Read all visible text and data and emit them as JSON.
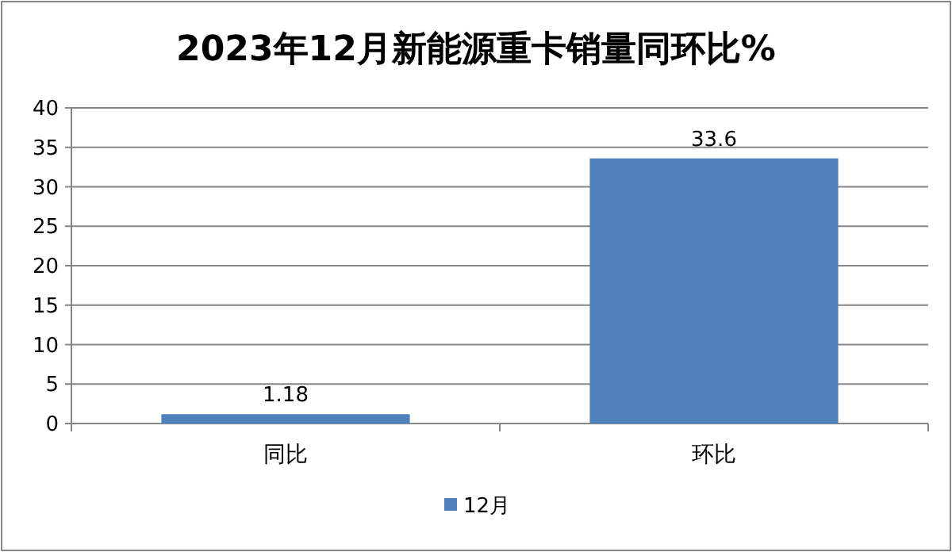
{
  "chart_data": {
    "type": "bar",
    "title": "2023年12月新能源重卡销量同环比%",
    "categories": [
      "同比",
      "环比"
    ],
    "series": [
      {
        "name": "12月",
        "color": "#4f81bd",
        "values": [
          1.18,
          33.6
        ]
      }
    ],
    "ylim": [
      0,
      40
    ],
    "yticks": [
      0,
      5,
      10,
      15,
      20,
      25,
      30,
      35,
      40
    ],
    "grid": "y",
    "legend": "bottom",
    "data_labels": true
  }
}
